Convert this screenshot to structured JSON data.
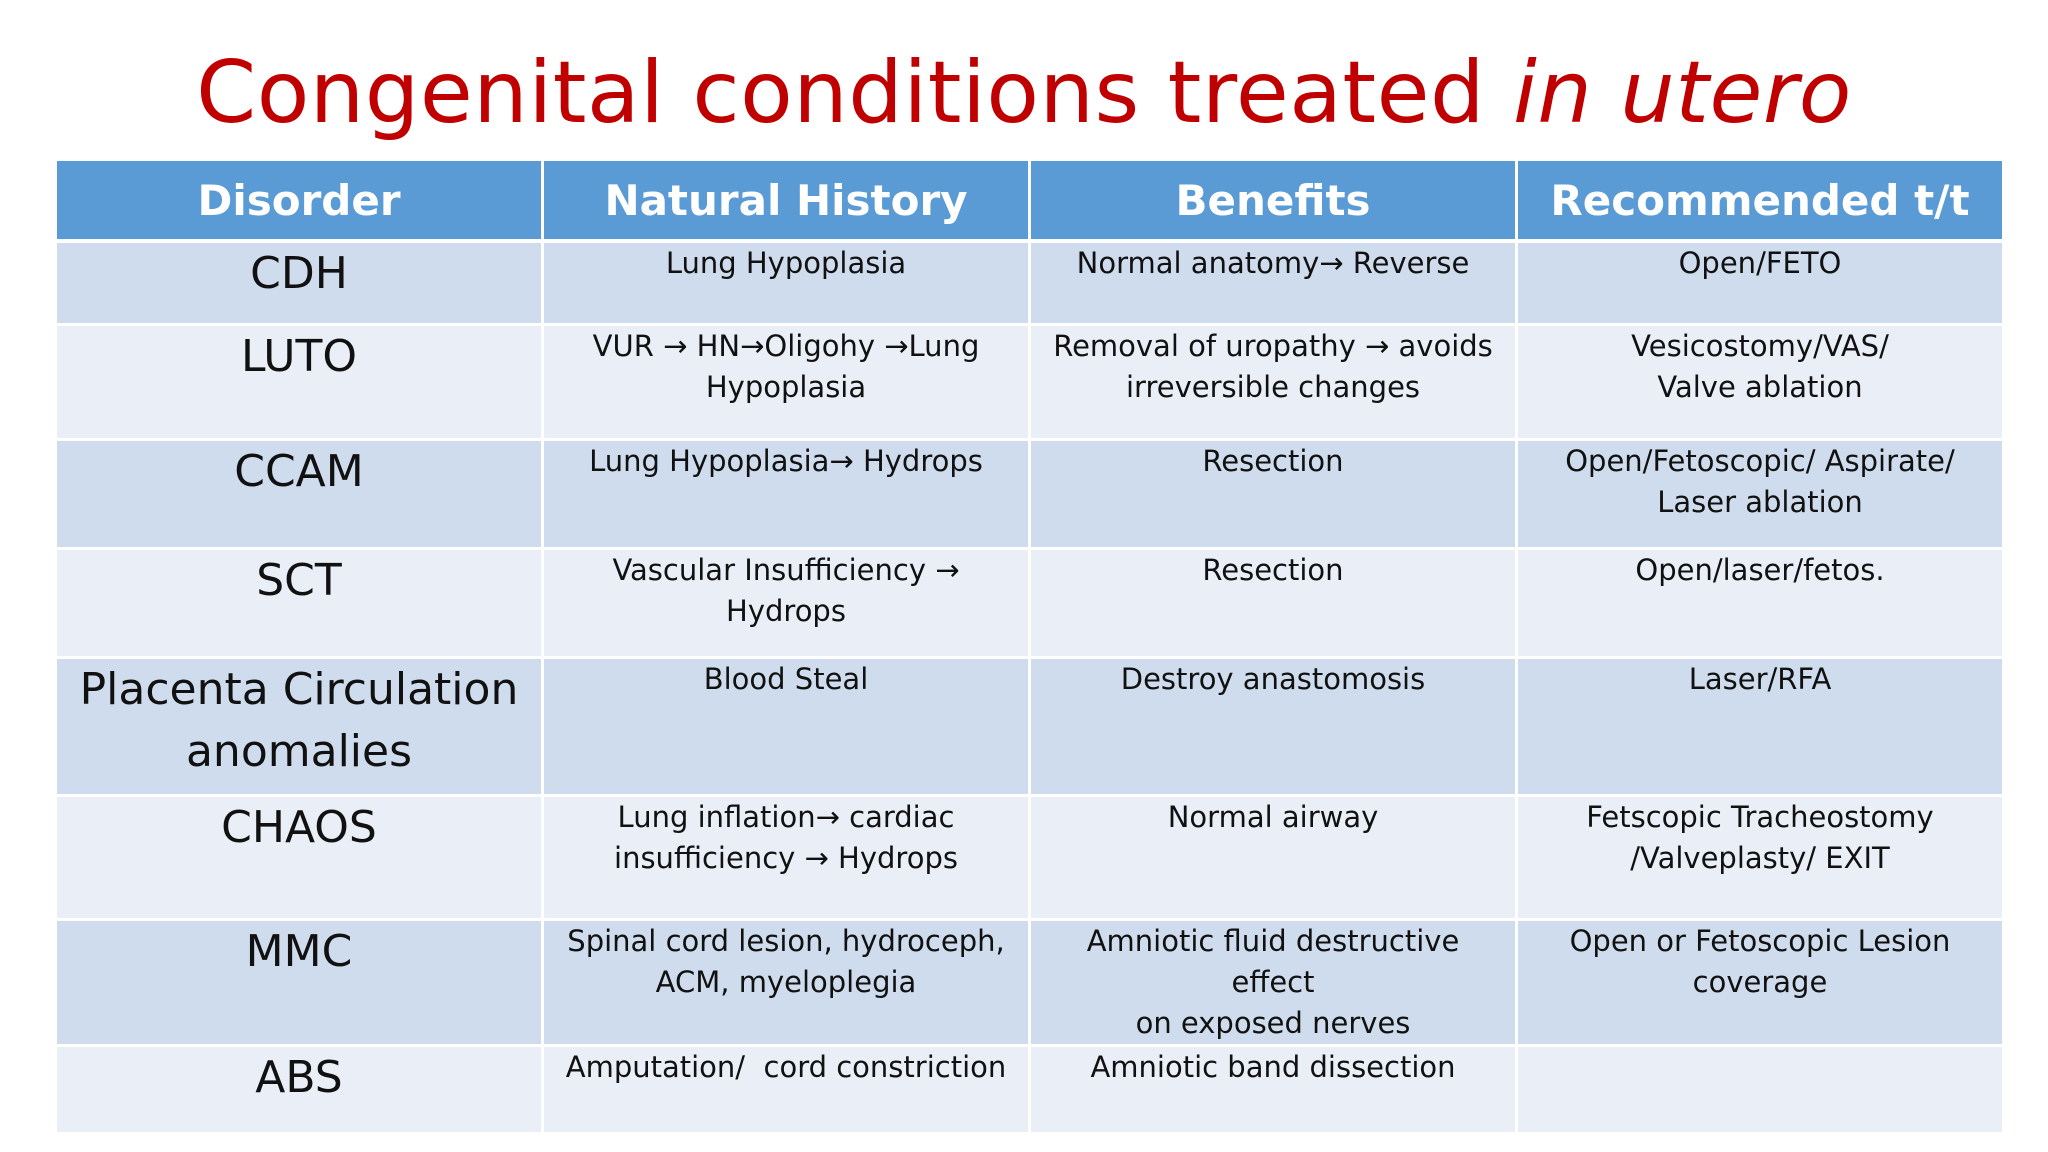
{
  "title": {
    "main": "Congenital conditions treated ",
    "italic": "in utero"
  },
  "table": {
    "headers": [
      "Disorder",
      "Natural History",
      "Benefits",
      "Recommended t/t"
    ],
    "rows": [
      {
        "disorder": "CDH",
        "history": [
          "Lung Hypoplasia"
        ],
        "benefits": [
          "Normal anatomy→ Reverse"
        ],
        "treatment": [
          "Open/FETO"
        ]
      },
      {
        "disorder": "LUTO",
        "history": [
          "VUR → HN→Oligohy →Lung",
          "Hypoplasia"
        ],
        "benefits": [
          "Removal of uropathy → avoids",
          "irreversible changes"
        ],
        "treatment": [
          "Vesicostomy/VAS/",
          "Valve ablation"
        ]
      },
      {
        "disorder": "CCAM",
        "history": [
          "Lung Hypoplasia→ Hydrops"
        ],
        "benefits": [
          "Resection"
        ],
        "treatment": [
          "Open/Fetoscopic/ Aspirate/",
          "Laser ablation"
        ]
      },
      {
        "disorder": "SCT",
        "history": [
          "Vascular Insufficiency →",
          "Hydrops"
        ],
        "benefits": [
          "Resection"
        ],
        "treatment": [
          "Open/laser/fetos."
        ]
      },
      {
        "disorder": [
          "Placenta Circulation",
          "anomalies"
        ],
        "history": [
          "Blood Steal"
        ],
        "benefits": [
          "Destroy anastomosis"
        ],
        "treatment": [
          "Laser/RFA"
        ]
      },
      {
        "disorder": "CHAOS",
        "history": [
          "Lung inflation→ cardiac",
          "insufficiency → Hydrops"
        ],
        "benefits": [
          "Normal airway"
        ],
        "treatment": [
          "Fetscopic Tracheostomy",
          "/Valveplasty/ EXIT"
        ]
      },
      {
        "disorder": "MMC",
        "history": [
          "Spinal cord lesion, hydroceph,",
          "ACM, myeloplegia"
        ],
        "benefits": [
          "Amniotic fluid destructive effect",
          "on exposed nerves"
        ],
        "treatment": [
          "Open or Fetoscopic Lesion",
          "coverage"
        ]
      },
      {
        "disorder": "ABS",
        "history": [
          "Amputation/  cord constriction"
        ],
        "benefits": [
          "Amniotic band dissection"
        ],
        "treatment": [
          ""
        ]
      }
    ]
  }
}
